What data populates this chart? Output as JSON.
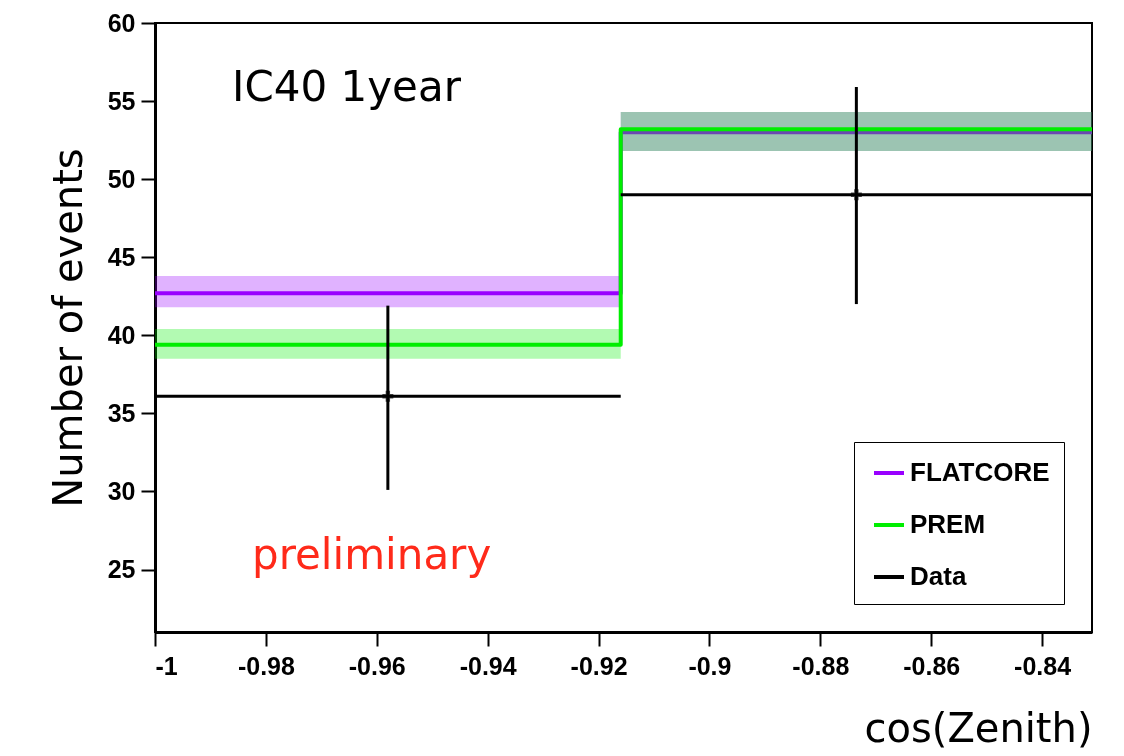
{
  "chart_data": {
    "type": "step",
    "xlabel": "cos(Zenith)",
    "ylabel": "Number of events",
    "annotations": [
      "IC40 1year",
      "preliminary"
    ],
    "series": [
      {
        "name": "FLATCORE",
        "color": "#9900ff",
        "x": [
          -1,
          -0.916,
          -0.831
        ],
        "values": [
          42.7,
          53.0,
          53.0
        ],
        "lower": [
          41.8,
          51.8,
          51.8
        ],
        "upper": [
          43.8,
          54.3,
          54.3
        ]
      },
      {
        "name": "PREM",
        "color": "#00ee00",
        "x": [
          -1,
          -0.916,
          -0.831
        ],
        "values": [
          39.4,
          53.2,
          53.2
        ],
        "lower": [
          38.5,
          51.8,
          51.8
        ],
        "upper": [
          40.4,
          54.3,
          54.3
        ]
      },
      {
        "name": "Data",
        "type": "scatter",
        "marker": "cross",
        "color": "#000000",
        "x": [
          -0.958,
          -0.8735
        ],
        "values": [
          36.1,
          49.0
        ],
        "errors": [
          [
            30.1,
            41.9
          ],
          [
            42.0,
            55.9
          ]
        ],
        "xerrors": [
          [
            -1,
            -0.916
          ],
          [
            -0.916,
            -0.831
          ]
        ]
      }
    ],
    "xlim": [
      -1,
      -0.831
    ],
    "xticks": [
      -1,
      -0.98,
      -0.96,
      -0.94,
      -0.92,
      -0.9,
      -0.88,
      -0.86,
      -0.84
    ],
    "ylim": [
      21,
      60
    ],
    "yticks": [
      25,
      30,
      35,
      40,
      45,
      50,
      55,
      60
    ],
    "grid": false,
    "legend": "bottom right"
  }
}
